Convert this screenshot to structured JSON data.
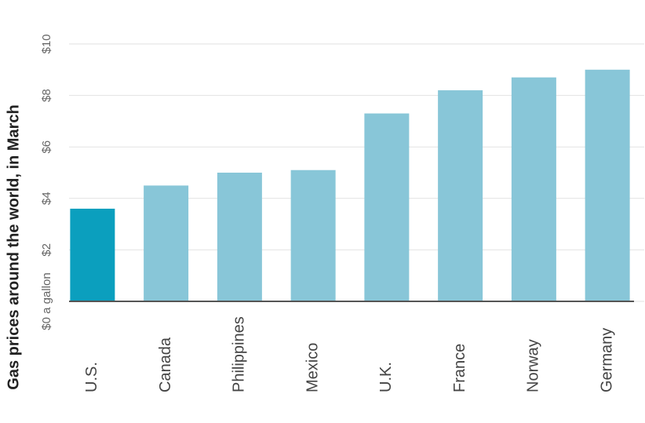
{
  "chart_data": {
    "type": "bar",
    "title": "Gas prices around the world, in March",
    "categories": [
      "U.S.",
      "Canada",
      "Philippines",
      "Mexico",
      "U.K.",
      "France",
      "Norway",
      "Germany"
    ],
    "values": [
      3.6,
      4.5,
      5.0,
      5.1,
      7.3,
      8.2,
      8.7,
      9.0
    ],
    "colors": [
      "#0b9fbe",
      "#88c6d8",
      "#88c6d8",
      "#88c6d8",
      "#88c6d8",
      "#88c6d8",
      "#88c6d8",
      "#88c6d8"
    ],
    "ylim": [
      0,
      10
    ],
    "yticks": [
      {
        "value": 0,
        "label": "$0 a gallon"
      },
      {
        "value": 2,
        "label": "$2"
      },
      {
        "value": 4,
        "label": "$4"
      },
      {
        "value": 6,
        "label": "$6"
      },
      {
        "value": 8,
        "label": "$8"
      },
      {
        "value": 10,
        "label": "$10"
      }
    ],
    "grid": true
  }
}
